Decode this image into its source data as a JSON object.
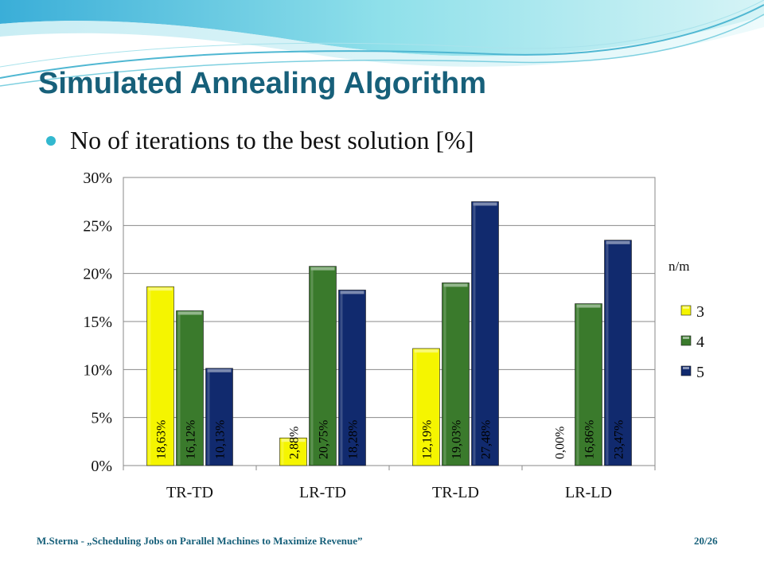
{
  "slide": {
    "title": "Simulated Annealing Algorithm",
    "bullet": "No of iterations to the best solution [%]",
    "footer_left": "M.Sterna - „Scheduling Jobs on Parallel Machines to Maximize Revenue”",
    "footer_right": "20/26"
  },
  "chart_data": {
    "type": "bar",
    "categories": [
      "TR-TD",
      "LR-TD",
      "TR-LD",
      "LR-LD"
    ],
    "series": [
      {
        "name": "3",
        "color": "#f5f500",
        "values": [
          18.63,
          2.88,
          12.19,
          0.0
        ],
        "labels": [
          "18,63%",
          "2,88%",
          "12,19%",
          "0,00%"
        ]
      },
      {
        "name": "4",
        "color": "#3a7a2c",
        "values": [
          16.12,
          20.75,
          19.03,
          16.86
        ],
        "labels": [
          "16,12%",
          "20,75%",
          "19,03%",
          "16,86%"
        ]
      },
      {
        "name": "5",
        "color": "#112a6e",
        "values": [
          10.13,
          18.28,
          27.48,
          23.47
        ],
        "labels": [
          "10,13%",
          "18,28%",
          "27,48%",
          "23,47%"
        ]
      }
    ],
    "yticks": [
      "0%",
      "5%",
      "10%",
      "15%",
      "20%",
      "25%",
      "30%"
    ],
    "ylim": [
      0,
      30
    ],
    "legend_title": "n/m",
    "legend_position": "right",
    "grid": true
  }
}
